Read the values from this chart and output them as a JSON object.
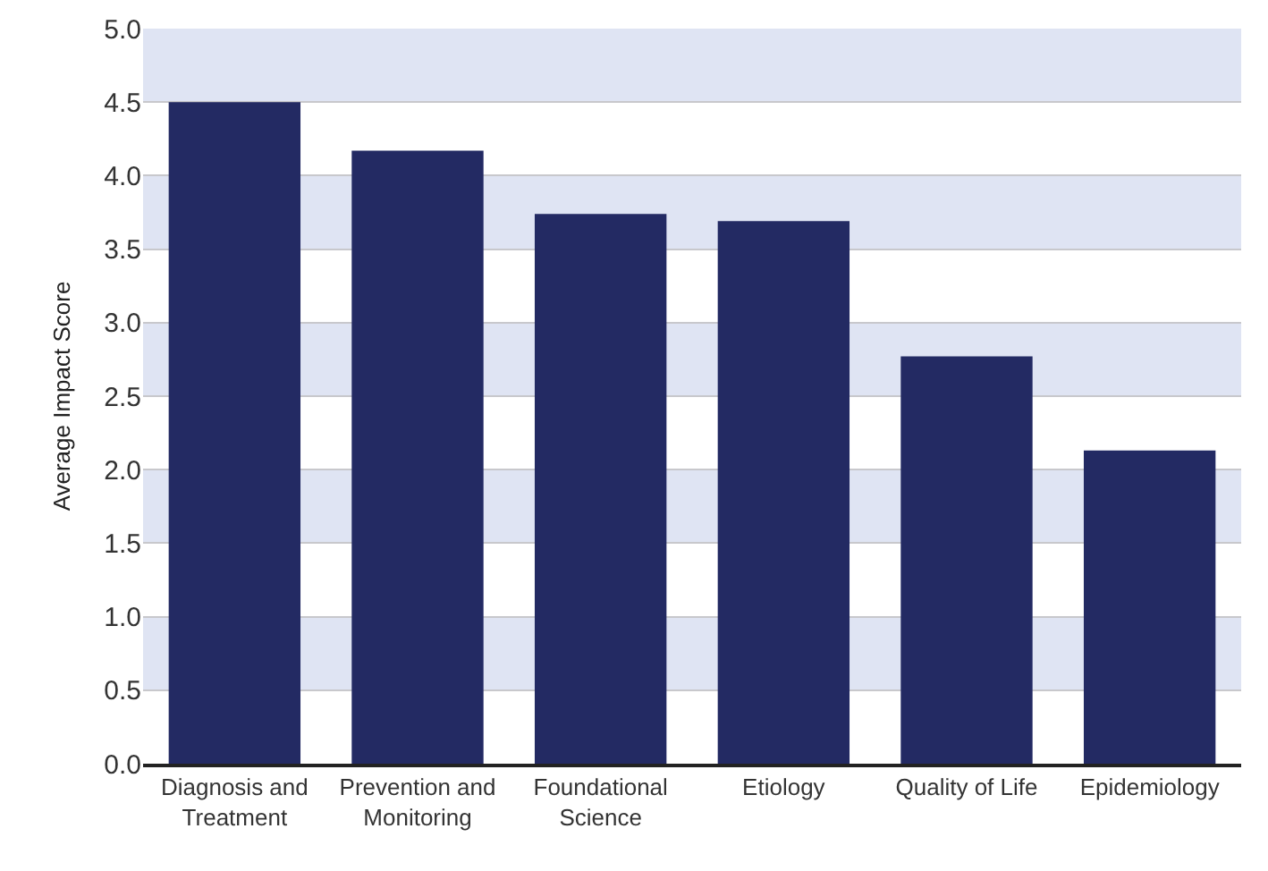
{
  "chart_data": {
    "type": "bar",
    "ylabel": "Average Impact Score",
    "categories": [
      "Diagnosis and\nTreatment",
      "Prevention and\nMonitoring",
      "Foundational\nScience",
      "Etiology",
      "Quality of Life",
      "Epidemiology"
    ],
    "values": [
      4.5,
      4.17,
      3.74,
      3.69,
      2.77,
      2.13
    ],
    "color": "#232a63",
    "ylim": [
      0,
      5
    ],
    "yticks": [
      {
        "value": 0,
        "label": "0.0"
      },
      {
        "value": 0.5,
        "label": "0.5"
      },
      {
        "value": 1,
        "label": "1.0"
      },
      {
        "value": 1.5,
        "label": "1.5"
      },
      {
        "value": 2,
        "label": "2.0"
      },
      {
        "value": 2.5,
        "label": "2.5"
      },
      {
        "value": 3,
        "label": "3.0"
      },
      {
        "value": 3.5,
        "label": "3.5"
      },
      {
        "value": 4,
        "label": "4.0"
      },
      {
        "value": 4.5,
        "label": "4.5"
      },
      {
        "value": 5,
        "label": "5.0"
      }
    ],
    "grid": "y",
    "bands": [
      {
        "axis": "y",
        "from": 0.5,
        "to": 1,
        "color": "#dfe4f3"
      },
      {
        "axis": "y",
        "from": 1.5,
        "to": 2,
        "color": "#dfe4f3"
      },
      {
        "axis": "y",
        "from": 2.5,
        "to": 3,
        "color": "#dfe4f3"
      },
      {
        "axis": "y",
        "from": 3.5,
        "to": 4,
        "color": "#dfe4f3"
      },
      {
        "axis": "y",
        "from": 4.5,
        "to": 5,
        "color": "#dfe4f3"
      }
    ]
  }
}
